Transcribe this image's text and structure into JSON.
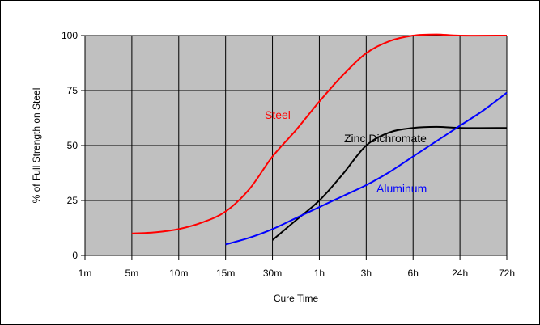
{
  "chart_data": {
    "type": "line",
    "xlabel": "Cure Time",
    "ylabel": "% of Full Strength on Steel",
    "categories": [
      "1m",
      "5m",
      "10m",
      "15m",
      "30m",
      "1h",
      "3h",
      "6h",
      "24h",
      "72h"
    ],
    "ylim": [
      0,
      100
    ],
    "yticks": [
      0,
      25,
      50,
      75,
      100
    ],
    "grid": true,
    "plot_background": "#c0c0c0",
    "series": [
      {
        "name": "Steel",
        "color": "#ff0000",
        "points": [
          [
            1,
            10
          ],
          [
            1.5,
            10.5
          ],
          [
            2,
            12
          ],
          [
            2.5,
            15
          ],
          [
            3,
            20
          ],
          [
            3.5,
            30
          ],
          [
            4,
            45
          ],
          [
            4.5,
            57
          ],
          [
            5,
            70
          ],
          [
            5.5,
            82
          ],
          [
            6,
            92
          ],
          [
            6.5,
            97.5
          ],
          [
            7,
            100
          ],
          [
            7.5,
            100.5
          ],
          [
            8,
            100
          ],
          [
            9,
            100
          ]
        ]
      },
      {
        "name": "Zinc Dichromate",
        "color": "#000000",
        "points": [
          [
            4,
            7
          ],
          [
            4.5,
            16
          ],
          [
            5,
            25
          ],
          [
            5.5,
            37
          ],
          [
            6,
            50
          ],
          [
            6.5,
            56
          ],
          [
            7,
            58
          ],
          [
            7.5,
            58.5
          ],
          [
            8,
            58
          ],
          [
            9,
            58
          ]
        ]
      },
      {
        "name": "Aluminum",
        "color": "#0000ff",
        "points": [
          [
            3,
            5
          ],
          [
            3.5,
            8
          ],
          [
            4,
            12
          ],
          [
            4.5,
            17
          ],
          [
            5,
            22
          ],
          [
            5.5,
            27
          ],
          [
            6,
            32
          ],
          [
            6.5,
            38
          ],
          [
            7,
            45
          ],
          [
            7.5,
            52
          ],
          [
            8,
            59
          ],
          [
            8.5,
            66
          ],
          [
            9,
            74
          ]
        ]
      }
    ]
  }
}
